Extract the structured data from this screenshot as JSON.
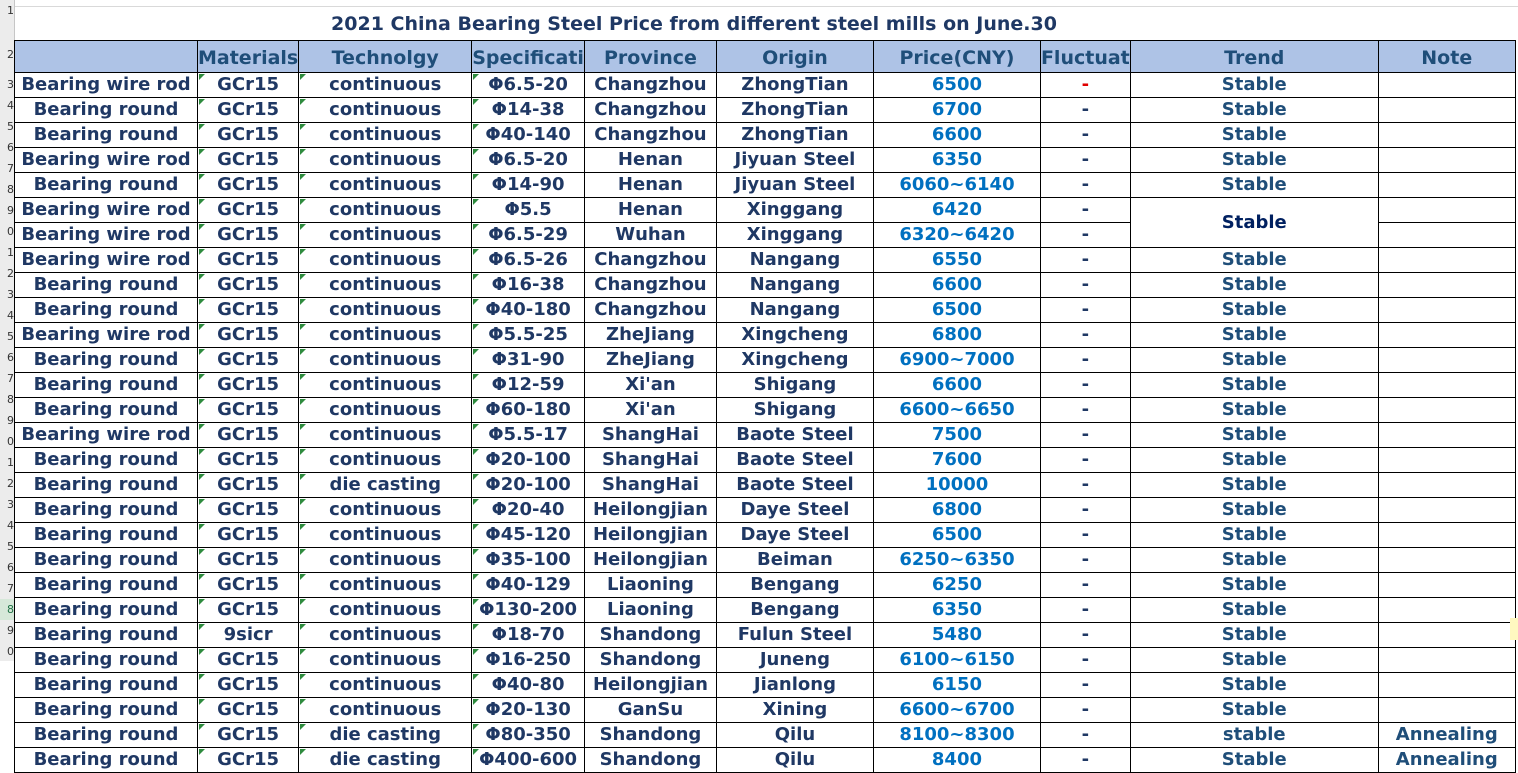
{
  "title": "2021 China Bearing Steel Price from different steel mills on June.30",
  "row_numbers": [
    "1",
    "2",
    "3",
    "4",
    "5",
    "6",
    "7",
    "8",
    "9",
    "0",
    "1",
    "2",
    "3",
    "4",
    "5",
    "6",
    "7",
    "8",
    "9",
    "0",
    "1",
    "2",
    "3",
    "4",
    "5",
    "6",
    "7",
    "8",
    "9",
    "0"
  ],
  "headers": {
    "product": "",
    "materials": "Materials",
    "technology": "Technolgy",
    "specification": "Specificati",
    "province": "Province",
    "origin": "Origin",
    "price": "Price(CNY)",
    "fluctuation": "Fluctuat",
    "trend": "Trend",
    "note": "Note"
  },
  "merged_trend": "Stable",
  "rows": [
    {
      "product": "Bearing wire rod",
      "materials": "GCr15",
      "technology": "continuous",
      "spec": "Φ6.5-20",
      "province": "Changzhou",
      "origin": "ZhongTian",
      "price": "6500",
      "fluct": "-",
      "trend": "Stable",
      "note": ""
    },
    {
      "product": "Bearing round",
      "materials": "GCr15",
      "technology": "continuous",
      "spec": "Φ14-38",
      "province": "Changzhou",
      "origin": "ZhongTian",
      "price": "6700",
      "fluct": "-",
      "trend": "Stable",
      "note": ""
    },
    {
      "product": "Bearing round",
      "materials": "GCr15",
      "technology": "continuous",
      "spec": "Φ40-140",
      "province": "Changzhou",
      "origin": "ZhongTian",
      "price": "6600",
      "fluct": "-",
      "trend": "Stable",
      "note": ""
    },
    {
      "product": "Bearing wire rod",
      "materials": "GCr15",
      "technology": "continuous",
      "spec": "Φ6.5-20",
      "province": "Henan",
      "origin": "Jiyuan Steel",
      "price": "6350",
      "fluct": "-",
      "trend": "Stable",
      "note": ""
    },
    {
      "product": "Bearing round",
      "materials": "GCr15",
      "technology": "continuous",
      "spec": "Φ14-90",
      "province": "Henan",
      "origin": "Jiyuan Steel",
      "price": "6060~6140",
      "fluct": "-",
      "trend": "Stable",
      "note": ""
    },
    {
      "product": "Bearing wire rod",
      "materials": "GCr15",
      "technology": "continuous",
      "spec": "Φ5.5",
      "province": "Henan",
      "origin": "Xinggang",
      "price": "6420",
      "fluct": "-",
      "trend": "",
      "note": ""
    },
    {
      "product": "Bearing wire rod",
      "materials": "GCr15",
      "technology": "continuous",
      "spec": "Φ6.5-29",
      "province": "Wuhan",
      "origin": "Xinggang",
      "price": "6320~6420",
      "fluct": "-",
      "trend": "",
      "note": ""
    },
    {
      "product": "Bearing wire rod",
      "materials": "GCr15",
      "technology": "continuous",
      "spec": "Φ6.5-26",
      "province": "Changzhou",
      "origin": "Nangang",
      "price": "6550",
      "fluct": "-",
      "trend": "Stable",
      "note": ""
    },
    {
      "product": "Bearing round",
      "materials": "GCr15",
      "technology": "continuous",
      "spec": "Φ16-38",
      "province": "Changzhou",
      "origin": "Nangang",
      "price": "6600",
      "fluct": "-",
      "trend": "Stable",
      "note": ""
    },
    {
      "product": "Bearing round",
      "materials": "GCr15",
      "technology": "continuous",
      "spec": "Φ40-180",
      "province": "Changzhou",
      "origin": "Nangang",
      "price": "6500",
      "fluct": "-",
      "trend": "Stable",
      "note": ""
    },
    {
      "product": "Bearing wire rod",
      "materials": "GCr15",
      "technology": "continuous",
      "spec": "Φ5.5-25",
      "province": "ZheJiang",
      "origin": "Xingcheng",
      "price": "6800",
      "fluct": "-",
      "trend": "Stable",
      "note": ""
    },
    {
      "product": "Bearing round",
      "materials": "GCr15",
      "technology": "continuous",
      "spec": "Φ31-90",
      "province": "ZheJiang",
      "origin": "Xingcheng",
      "price": "6900~7000",
      "fluct": "-",
      "trend": "Stable",
      "note": ""
    },
    {
      "product": "Bearing round",
      "materials": "GCr15",
      "technology": "continuous",
      "spec": "Φ12-59",
      "province": "Xi'an",
      "origin": "Shigang",
      "price": "6600",
      "fluct": "-",
      "trend": "Stable",
      "note": ""
    },
    {
      "product": "Bearing round",
      "materials": "GCr15",
      "technology": "continuous",
      "spec": "Φ60-180",
      "province": "Xi'an",
      "origin": "Shigang",
      "price": "6600~6650",
      "fluct": "-",
      "trend": "Stable",
      "note": ""
    },
    {
      "product": "Bearing wire rod",
      "materials": "GCr15",
      "technology": "continuous",
      "spec": "Φ5.5-17",
      "province": "ShangHai",
      "origin": "Baote Steel",
      "price": "7500",
      "fluct": "-",
      "trend": "Stable",
      "note": ""
    },
    {
      "product": "Bearing round",
      "materials": "GCr15",
      "technology": "continuous",
      "spec": "Φ20-100",
      "province": "ShangHai",
      "origin": "Baote Steel",
      "price": "7600",
      "fluct": "-",
      "trend": "Stable",
      "note": ""
    },
    {
      "product": "Bearing round",
      "materials": "GCr15",
      "technology": "die casting",
      "spec": "Φ20-100",
      "province": "ShangHai",
      "origin": "Baote Steel",
      "price": "10000",
      "fluct": "-",
      "trend": "Stable",
      "note": ""
    },
    {
      "product": "Bearing round",
      "materials": "GCr15",
      "technology": "continuous",
      "spec": "Φ20-40",
      "province": "Heilongjian",
      "origin": "Daye  Steel",
      "price": "6800",
      "fluct": "-",
      "trend": "Stable",
      "note": ""
    },
    {
      "product": "Bearing round",
      "materials": "GCr15",
      "technology": "continuous",
      "spec": "Φ45-120",
      "province": "Heilongjian",
      "origin": "Daye  Steel",
      "price": "6500",
      "fluct": "-",
      "trend": "Stable",
      "note": ""
    },
    {
      "product": "Bearing round",
      "materials": "GCr15",
      "technology": "continuous",
      "spec": "Φ35-100",
      "province": "Heilongjian",
      "origin": "Beiman",
      "price": "6250~6350",
      "fluct": "-",
      "trend": "Stable",
      "note": ""
    },
    {
      "product": "Bearing round",
      "materials": "GCr15",
      "technology": "continuous",
      "spec": "Φ40-129",
      "province": "Liaoning",
      "origin": "Bengang",
      "price": "6250",
      "fluct": "-",
      "trend": "Stable",
      "note": ""
    },
    {
      "product": "Bearing round",
      "materials": "GCr15",
      "technology": "continuous",
      "spec": "Φ130-200",
      "province": "Liaoning",
      "origin": "Bengang",
      "price": "6350",
      "fluct": "-",
      "trend": "Stable",
      "note": ""
    },
    {
      "product": "Bearing round",
      "materials": "9sicr",
      "technology": "continuous",
      "spec": "Φ18-70",
      "province": "Shandong",
      "origin": "Fulun Steel",
      "price": "5480",
      "fluct": "-",
      "trend": "Stable",
      "note": ""
    },
    {
      "product": "Bearing round",
      "materials": "GCr15",
      "technology": "continuous",
      "spec": "Φ16-250",
      "province": "Shandong",
      "origin": "Juneng",
      "price": "6100~6150",
      "fluct": "-",
      "trend": "Stable",
      "note": ""
    },
    {
      "product": "Bearing round",
      "materials": "GCr15",
      "technology": "continuous",
      "spec": "Φ40-80",
      "province": "Heilongjian",
      "origin": "Jianlong",
      "price": "6150",
      "fluct": "-",
      "trend": "Stable",
      "note": ""
    },
    {
      "product": "Bearing round",
      "materials": "GCr15",
      "technology": "continuous",
      "spec": "Φ20-130",
      "province": "GanSu",
      "origin": "Xining",
      "price": "6600~6700",
      "fluct": "-",
      "trend": "Stable",
      "note": ""
    },
    {
      "product": "Bearing round",
      "materials": "GCr15",
      "technology": "die casting",
      "spec": "Φ80-350",
      "province": "Shandong",
      "origin": "Qilu",
      "price": "8100~8300",
      "fluct": "-",
      "trend": "stable",
      "note": "Annealing"
    },
    {
      "product": "Bearing round",
      "materials": "GCr15",
      "technology": "die casting",
      "spec": "Φ400-600",
      "province": "Shandong",
      "origin": "Qilu",
      "price": "8400",
      "fluct": "-",
      "trend": "Stable",
      "note": "Annealing"
    }
  ],
  "colors": {
    "header_bg": "#aec3e6",
    "text": "#1f3864",
    "price_text": "#0070c0",
    "alert": "#e00000"
  }
}
